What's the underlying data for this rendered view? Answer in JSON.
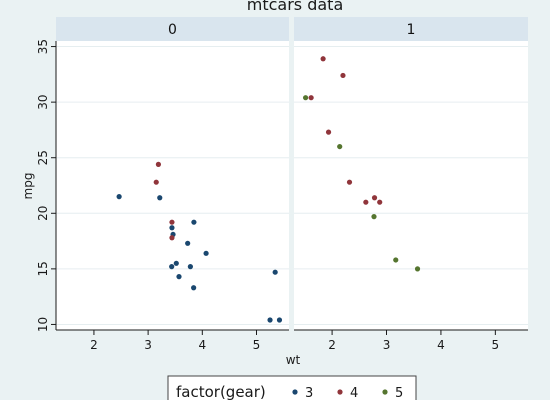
{
  "chart_data": {
    "type": "scatter",
    "title": "mtcars data",
    "xlabel": "wt",
    "ylabel": "mpg",
    "xlim": [
      1.3,
      5.6
    ],
    "ylim": [
      9.5,
      35.5
    ],
    "xticks": [
      2,
      3,
      4,
      5
    ],
    "yticks": [
      10,
      15,
      20,
      25,
      30,
      35
    ],
    "grid": true,
    "legend": {
      "title": "factor(gear)",
      "placement": "bottom"
    },
    "panels": [
      {
        "label": "0",
        "series": [
          {
            "name": "3",
            "color": "#1a476f",
            "points": [
              [
                2.465,
                21.5
              ],
              [
                3.215,
                21.4
              ],
              [
                3.44,
                18.7
              ],
              [
                3.46,
                18.1
              ],
              [
                3.57,
                14.3
              ],
              [
                4.07,
                16.4
              ],
              [
                3.73,
                17.3
              ],
              [
                3.78,
                15.2
              ],
              [
                5.25,
                10.4
              ],
              [
                5.424,
                10.4
              ],
              [
                5.345,
                14.7
              ],
              [
                3.52,
                15.5
              ],
              [
                3.435,
                15.2
              ],
              [
                3.84,
                13.3
              ],
              [
                3.845,
                19.2
              ]
            ]
          },
          {
            "name": "4",
            "color": "#90353b",
            "points": [
              [
                3.19,
                24.4
              ],
              [
                3.15,
                22.8
              ],
              [
                3.44,
                19.2
              ],
              [
                3.44,
                17.8
              ]
            ]
          }
        ]
      },
      {
        "label": "1",
        "series": [
          {
            "name": "4",
            "color": "#90353b",
            "points": [
              [
                2.62,
                21.0
              ],
              [
                2.875,
                21.0
              ],
              [
                2.32,
                22.8
              ],
              [
                2.2,
                32.4
              ],
              [
                1.615,
                30.4
              ],
              [
                1.835,
                33.9
              ],
              [
                1.935,
                27.3
              ],
              [
                2.78,
                21.4
              ]
            ]
          },
          {
            "name": "5",
            "color": "#55752f",
            "points": [
              [
                2.14,
                26.0
              ],
              [
                1.513,
                30.4
              ],
              [
                3.17,
                15.8
              ],
              [
                2.77,
                19.7
              ],
              [
                3.57,
                15.0
              ]
            ]
          }
        ]
      }
    ],
    "legend_entries": [
      {
        "label": "3",
        "color": "#1a476f"
      },
      {
        "label": "4",
        "color": "#90353b"
      },
      {
        "label": "5",
        "color": "#55752f"
      }
    ]
  }
}
